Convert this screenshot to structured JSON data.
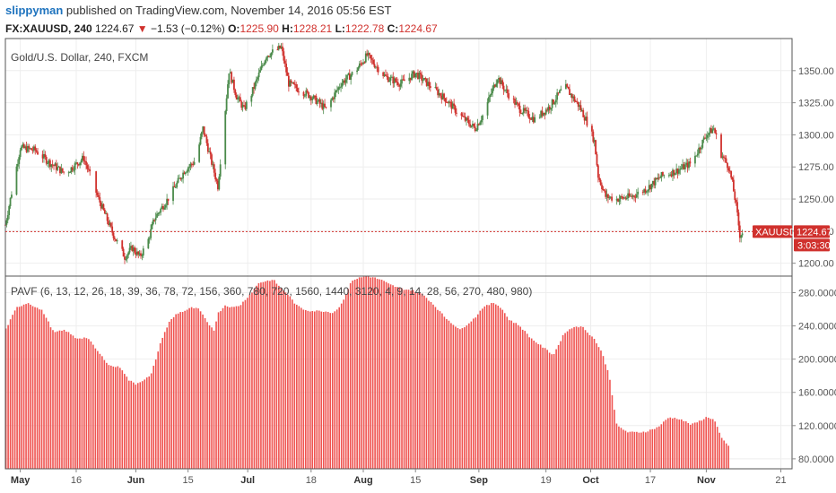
{
  "header": {
    "user": "slippyman",
    "published_text": "published on TradingView.com, November 14, 2016 05:56 EST"
  },
  "symbol_bar": {
    "symbol": "FX:XAUUSD, 240",
    "last": "1224.67",
    "change": "−1.53 (−0.12%)",
    "open_label": "O:",
    "open": "1225.90",
    "high_label": "H:",
    "high": "1228.21",
    "low_label": "L:",
    "low": "1222.78",
    "close_label": "C:",
    "close": "1224.67"
  },
  "colors": {
    "up": "#4a8a4a",
    "down": "#d0312d",
    "osc_bar": "#ef5350",
    "price_line": "#d0312d",
    "grid": "#eeeeee",
    "border": "#555555"
  },
  "chart_data": [
    {
      "type": "candlestick",
      "title": "Gold/U.S. Dollar, 240, FXCM",
      "price_label": {
        "symbol": "XAUUSD",
        "value": "1224.67",
        "countdown": "3:03:30"
      },
      "ylim": [
        1190,
        1375
      ],
      "y_ticks": [
        "1350.00",
        "1325.00",
        "1300.00",
        "1275.00",
        "1250.00",
        "1225.00",
        "1200.00"
      ],
      "y_tick_values": [
        1350,
        1325,
        1300,
        1275,
        1250,
        1225,
        1200
      ],
      "current_price": 1224.67,
      "x_labels": [
        "May",
        "16",
        "Jun",
        "15",
        "Jul",
        "18",
        "Aug",
        "15",
        "Sep",
        "19",
        "Oct",
        "17",
        "Nov",
        "21"
      ],
      "x_label_bold": [
        "May",
        "Jun",
        "Jul",
        "Aug",
        "Sep",
        "Oct",
        "Nov"
      ],
      "x_label_days": [
        0,
        15,
        31,
        45,
        61,
        78,
        92,
        106,
        123,
        141,
        153,
        169,
        184,
        204
      ],
      "day_range": [
        -4,
        207
      ],
      "close_profile": {
        "days": [
          -4,
          0,
          4,
          8,
          12,
          17,
          21,
          25,
          28,
          30,
          32,
          34,
          36,
          40,
          44,
          47,
          49,
          51,
          53,
          56,
          58,
          60,
          62,
          66,
          70,
          72,
          78,
          82,
          86,
          90,
          93,
          95,
          98,
          102,
          106,
          110,
          114,
          118,
          122,
          124,
          126,
          128,
          130,
          134,
          138,
          142,
          146,
          150,
          152,
          154,
          155,
          157,
          160,
          164,
          168,
          172,
          176,
          180,
          184,
          186,
          188,
          190,
          191,
          192,
          193,
          194
        ],
        "closes": [
          1230,
          1290,
          1288,
          1278,
          1270,
          1282,
          1250,
          1222,
          1205,
          1212,
          1205,
          1215,
          1235,
          1252,
          1272,
          1280,
          1305,
          1282,
          1260,
          1350,
          1330,
          1320,
          1332,
          1362,
          1368,
          1340,
          1330,
          1320,
          1340,
          1350,
          1362,
          1355,
          1345,
          1340,
          1348,
          1338,
          1328,
          1315,
          1305,
          1315,
          1330,
          1345,
          1335,
          1320,
          1312,
          1322,
          1338,
          1322,
          1310,
          1295,
          1268,
          1252,
          1250,
          1252,
          1258,
          1268,
          1272,
          1278,
          1300,
          1305,
          1285,
          1275,
          1262,
          1245,
          1222,
          1225
        ]
      }
    },
    {
      "type": "bar",
      "title": "PAVF (6, 13, 12, 26, 18, 39, 36, 78, 72, 156, 360, 780, 720, 1560, 1440, 3120, 4, 9, 14, 28, 56, 270, 480, 980)",
      "ylim": [
        68,
        300
      ],
      "y_ticks": [
        "280.0000",
        "240.0000",
        "200.0000",
        "160.0000",
        "120.0000",
        "80.0000"
      ],
      "y_tick_values": [
        280,
        240,
        200,
        160,
        120,
        80
      ],
      "profile": {
        "days": [
          -4,
          -1,
          2,
          6,
          9,
          12,
          15,
          18,
          21,
          24,
          27,
          29,
          31,
          33,
          35,
          38,
          40,
          42,
          44,
          46,
          48,
          50,
          52,
          53,
          55,
          57,
          59,
          62,
          64,
          67,
          68,
          70,
          72,
          74,
          76,
          78,
          81,
          84,
          86,
          89,
          91,
          93,
          95,
          97,
          99,
          102,
          105,
          108,
          111,
          114,
          118,
          122,
          124,
          127,
          129,
          131,
          134,
          137,
          140,
          143,
          146,
          149,
          151,
          154,
          156,
          158,
          160,
          163,
          166,
          168,
          171,
          174,
          177,
          180,
          182,
          184,
          186,
          187,
          188,
          190
        ],
        "values": [
          235,
          262,
          268,
          258,
          232,
          235,
          225,
          226,
          208,
          192,
          190,
          175,
          170,
          175,
          180,
          225,
          245,
          255,
          258,
          262,
          260,
          245,
          235,
          255,
          265,
          262,
          265,
          280,
          292,
          295,
          295,
          285,
          277,
          265,
          260,
          258,
          258,
          256,
          265,
          295,
          298,
          300,
          298,
          295,
          290,
          285,
          283,
          278,
          265,
          250,
          235,
          250,
          262,
          268,
          262,
          248,
          240,
          225,
          215,
          205,
          232,
          240,
          238,
          224,
          208,
          180,
          120,
          112,
          112,
          113,
          118,
          130,
          128,
          121,
          125,
          130,
          128,
          118,
          105,
          95
        ]
      }
    }
  ]
}
